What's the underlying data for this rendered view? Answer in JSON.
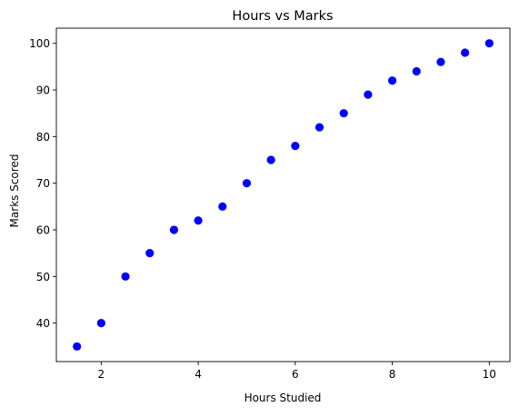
{
  "chart_data": {
    "type": "scatter",
    "title": "Hours vs Marks",
    "xlabel": "Hours Studied",
    "ylabel": "Marks Scored",
    "xlim": [
      1.075,
      10.425
    ],
    "ylim": [
      31.75,
      103.25
    ],
    "xticks": [
      2,
      4,
      6,
      8,
      10
    ],
    "yticks": [
      40,
      50,
      60,
      70,
      80,
      90,
      100
    ],
    "grid": false,
    "marker_color": "#0000ff",
    "series": [
      {
        "x": [
          1.5,
          2.0,
          2.5,
          3.0,
          3.5,
          4.0,
          4.5,
          5.0,
          5.5,
          6.0,
          6.5,
          7.0,
          7.5,
          8.0,
          8.5,
          9.0,
          9.5,
          10.0
        ],
        "y": [
          35,
          40,
          50,
          55,
          60,
          62,
          65,
          70,
          75,
          78,
          82,
          85,
          89,
          92,
          94,
          96,
          98,
          100
        ]
      }
    ]
  }
}
